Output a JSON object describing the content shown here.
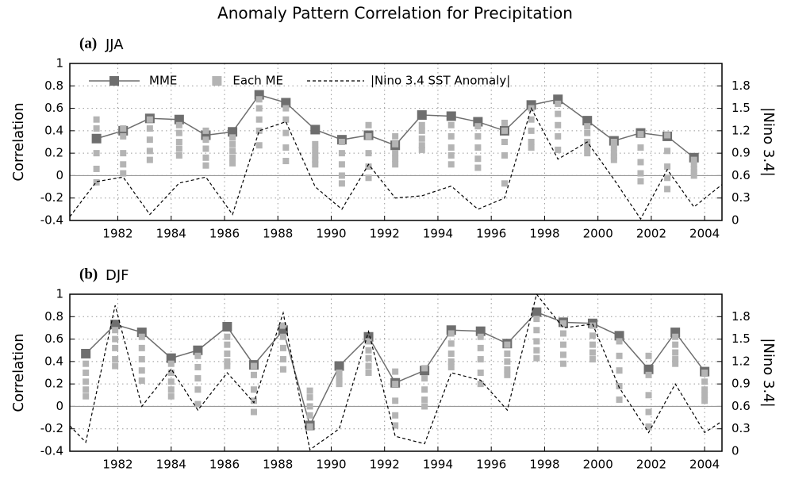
{
  "title": "Anomaly Pattern Correlation for Precipitation",
  "chart_data": [
    {
      "type": "line",
      "panel_label": "(a)",
      "season": "JJA",
      "ylabel": "Correlation",
      "y2label": "|Nino 3.4|",
      "xlim": [
        1980.2,
        2004.65
      ],
      "xticks": [
        1982,
        1984,
        1986,
        1988,
        1990,
        1992,
        1994,
        1996,
        1998,
        2000,
        2002,
        2004
      ],
      "ylim": [
        -0.4,
        1
      ],
      "yticks": [
        -0.4,
        -0.2,
        0,
        0.2,
        0.4,
        0.6,
        0.8,
        1
      ],
      "y2lim": [
        0,
        2.1
      ],
      "y2ticks": [
        0,
        0.3,
        0.6,
        0.9,
        1.2,
        1.5,
        1.8
      ],
      "grid": true,
      "legend": "top",
      "series": [
        {
          "name": "MME",
          "color": "#6e6e6e",
          "x": [
            1981.2,
            1982.2,
            1983.2,
            1984.3,
            1985.3,
            1986.3,
            1987.3,
            1988.3,
            1989.4,
            1990.4,
            1991.4,
            1992.4,
            1993.4,
            1994.5,
            1995.5,
            1996.5,
            1997.5,
            1998.5,
            1999.6,
            2000.6,
            2001.6,
            2002.6,
            2003.6
          ],
          "values": [
            0.33,
            0.4,
            0.51,
            0.5,
            0.36,
            0.39,
            0.72,
            0.65,
            0.41,
            0.32,
            0.36,
            0.27,
            0.54,
            0.53,
            0.48,
            0.4,
            0.63,
            0.68,
            0.49,
            0.31,
            0.38,
            0.35,
            0.16
          ]
        },
        {
          "name": "Each ME",
          "color": "#b4b4b4",
          "x": [
            1981.2,
            1982.2,
            1983.2,
            1984.3,
            1985.3,
            1986.3,
            1987.3,
            1988.3,
            1989.4,
            1990.4,
            1991.4,
            1992.4,
            1993.4,
            1994.5,
            1995.5,
            1996.5,
            1997.5,
            1998.5,
            1999.6,
            2000.6,
            2001.6,
            2002.6,
            2003.6
          ],
          "values": [
            [
              0.5,
              0.42,
              0.2,
              0.06,
              -0.06
            ],
            [
              0.42,
              0.35,
              0.2,
              0.1,
              0.02
            ],
            [
              0.5,
              0.42,
              0.32,
              0.22,
              0.14
            ],
            [
              0.45,
              0.38,
              0.3,
              0.24,
              0.18
            ],
            [
              0.4,
              0.32,
              0.24,
              0.16,
              0.09
            ],
            [
              0.34,
              0.28,
              0.22,
              0.16,
              0.11
            ],
            [
              0.68,
              0.6,
              0.5,
              0.4,
              0.27
            ],
            [
              0.6,
              0.5,
              0.38,
              0.25,
              0.13
            ],
            [
              0.28,
              0.23,
              0.18,
              0.14,
              0.1
            ],
            [
              0.3,
              0.2,
              0.1,
              0.0,
              -0.07
            ],
            [
              0.45,
              0.35,
              0.2,
              0.08,
              -0.02
            ],
            [
              0.35,
              0.28,
              0.2,
              0.15,
              0.1
            ],
            [
              0.45,
              0.4,
              0.33,
              0.27,
              0.23
            ],
            [
              0.45,
              0.35,
              0.25,
              0.18,
              0.1
            ],
            [
              0.44,
              0.35,
              0.25,
              0.15,
              0.07
            ],
            [
              0.47,
              0.4,
              0.3,
              0.18,
              -0.07
            ],
            [
              0.6,
              0.5,
              0.4,
              0.3,
              0.25
            ],
            [
              0.64,
              0.55,
              0.45,
              0.35,
              0.23
            ],
            [
              0.44,
              0.38,
              0.3,
              0.25,
              0.2
            ],
            [
              0.3,
              0.25,
              0.2,
              0.17,
              0.14
            ],
            [
              0.37,
              0.25,
              0.12,
              0.02,
              -0.05
            ],
            [
              0.36,
              0.22,
              0.08,
              -0.02,
              -0.12
            ],
            [
              0.14,
              0.1,
              0.06,
              0.03,
              0.0
            ]
          ]
        },
        {
          "name": "|Nino 3.4 SST Anomaly|",
          "color": "#000000",
          "axis": "y2",
          "x": [
            1980.2,
            1981.2,
            1982.2,
            1983.2,
            1984.3,
            1985.3,
            1986.3,
            1987.3,
            1988.3,
            1989.4,
            1990.4,
            1991.4,
            1992.4,
            1993.4,
            1994.5,
            1995.5,
            1996.5,
            1997.5,
            1998.5,
            1999.6,
            2000.6,
            2001.6,
            2002.6,
            2003.6,
            2004.65
          ],
          "values": [
            0.05,
            0.52,
            0.58,
            0.08,
            0.5,
            0.58,
            0.08,
            1.2,
            1.32,
            0.45,
            0.15,
            0.75,
            0.3,
            0.33,
            0.46,
            0.15,
            0.3,
            1.5,
            0.82,
            1.05,
            0.55,
            0.02,
            0.68,
            0.18,
            0.48
          ]
        }
      ]
    },
    {
      "type": "line",
      "panel_label": "(b)",
      "season": "DJF",
      "ylabel": "Correlation",
      "y2label": "|Nino 3.4|",
      "xlim": [
        1980.2,
        2004.65
      ],
      "xticks": [
        1982,
        1984,
        1986,
        1988,
        1990,
        1992,
        1994,
        1996,
        1998,
        2000,
        2002,
        2004
      ],
      "ylim": [
        -0.4,
        1
      ],
      "yticks": [
        -0.4,
        -0.2,
        0,
        0.2,
        0.4,
        0.6,
        0.8,
        1
      ],
      "y2lim": [
        0,
        2.1
      ],
      "y2ticks": [
        0,
        0.3,
        0.6,
        0.9,
        1.2,
        1.5,
        1.8
      ],
      "grid": true,
      "series": [
        {
          "color": "#6e6e6e",
          "x": [
            1980.8,
            1981.9,
            1982.9,
            1984.0,
            1985.0,
            1986.1,
            1987.1,
            1988.2,
            1989.2,
            1990.3,
            1991.4,
            1992.4,
            1993.5,
            1994.5,
            1995.6,
            1996.6,
            1997.7,
            1998.7,
            1999.8,
            2000.8,
            2001.9,
            2002.9,
            2004.0
          ],
          "values": [
            0.47,
            0.73,
            0.66,
            0.43,
            0.5,
            0.71,
            0.37,
            0.68,
            -0.17,
            0.36,
            0.62,
            0.21,
            0.32,
            0.68,
            0.67,
            0.56,
            0.84,
            0.75,
            0.74,
            0.63,
            0.33,
            0.66,
            0.31
          ]
        },
        {
          "color": "#b4b4b4",
          "x": [
            1980.8,
            1981.9,
            1982.9,
            1984.0,
            1985.0,
            1986.1,
            1987.1,
            1988.2,
            1989.2,
            1990.3,
            1991.4,
            1992.4,
            1993.5,
            1994.5,
            1995.6,
            1996.6,
            1997.7,
            1998.7,
            1999.8,
            2000.8,
            2001.9,
            2002.9,
            2004.0
          ],
          "values": [
            [
              0.38,
              0.3,
              0.22,
              0.15,
              0.09
            ],
            [
              0.68,
              0.6,
              0.52,
              0.42,
              0.36
            ],
            [
              0.62,
              0.52,
              0.42,
              0.32,
              0.23
            ],
            [
              0.38,
              0.3,
              0.22,
              0.15,
              0.09
            ],
            [
              0.45,
              0.35,
              0.25,
              0.15,
              0.02
            ],
            [
              0.62,
              0.55,
              0.47,
              0.4,
              0.36
            ],
            [
              0.36,
              0.28,
              0.15,
              0.05,
              -0.05
            ],
            [
              0.72,
              0.62,
              0.52,
              0.42,
              0.33
            ],
            [
              0.14,
              0.08,
              0.0,
              -0.08,
              -0.18
            ],
            [
              0.3,
              0.27,
              0.24,
              0.22,
              0.2
            ],
            [
              0.58,
              0.5,
              0.43,
              0.36,
              0.3
            ],
            [
              0.31,
              0.2,
              0.05,
              -0.08,
              -0.17
            ],
            [
              0.34,
              0.25,
              0.15,
              0.06,
              0.0
            ],
            [
              0.65,
              0.56,
              0.47,
              0.4,
              0.35
            ],
            [
              0.62,
              0.52,
              0.42,
              0.3,
              0.2
            ],
            [
              0.55,
              0.47,
              0.4,
              0.33,
              0.28
            ],
            [
              0.78,
              0.68,
              0.58,
              0.5,
              0.43
            ],
            [
              0.74,
              0.65,
              0.55,
              0.46,
              0.38
            ],
            [
              0.72,
              0.63,
              0.55,
              0.48,
              0.42
            ],
            [
              0.58,
              0.45,
              0.32,
              0.18,
              0.06
            ],
            [
              0.45,
              0.28,
              0.1,
              -0.05,
              -0.18
            ],
            [
              0.62,
              0.55,
              0.48,
              0.42,
              0.38
            ],
            [
              0.3,
              0.22,
              0.15,
              0.1,
              0.05
            ]
          ]
        },
        {
          "color": "#000000",
          "axis": "y2",
          "x": [
            1980.2,
            1980.8,
            1981.9,
            1982.9,
            1984.0,
            1985.0,
            1986.1,
            1987.1,
            1988.2,
            1989.2,
            1990.3,
            1991.4,
            1992.4,
            1993.5,
            1994.5,
            1995.6,
            1996.6,
            1997.7,
            1998.7,
            1999.8,
            2000.8,
            2001.9,
            2002.9,
            2004.0,
            2004.65
          ],
          "values": [
            0.34,
            0.12,
            1.95,
            0.6,
            1.1,
            0.55,
            1.05,
            0.65,
            1.85,
            0.02,
            0.3,
            1.6,
            0.2,
            0.1,
            1.05,
            0.95,
            0.55,
            2.1,
            1.65,
            1.7,
            0.85,
            0.25,
            0.9,
            0.25,
            0.4
          ]
        }
      ]
    }
  ]
}
